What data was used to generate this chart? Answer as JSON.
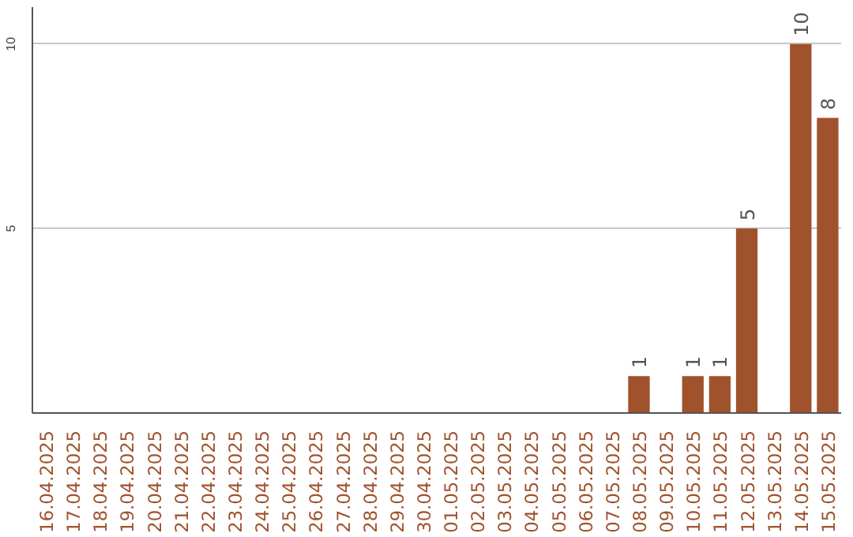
{
  "chart_data": {
    "type": "bar",
    "categories": [
      "16.04.2025",
      "17.04.2025",
      "18.04.2025",
      "19.04.2025",
      "20.04.2025",
      "21.04.2025",
      "22.04.2025",
      "23.04.2025",
      "24.04.2025",
      "25.04.2025",
      "26.04.2025",
      "27.04.2025",
      "28.04.2025",
      "29.04.2025",
      "30.04.2025",
      "01.05.2025",
      "02.05.2025",
      "03.05.2025",
      "04.05.2025",
      "05.05.2025",
      "06.05.2025",
      "07.05.2025",
      "08.05.2025",
      "09.05.2025",
      "10.05.2025",
      "11.05.2025",
      "12.05.2025",
      "13.05.2025",
      "14.05.2025",
      "15.05.2025"
    ],
    "values": [
      0,
      0,
      0,
      0,
      0,
      0,
      0,
      0,
      0,
      0,
      0,
      0,
      0,
      0,
      0,
      0,
      0,
      0,
      0,
      0,
      0,
      0,
      1,
      0,
      1,
      1,
      5,
      0,
      10,
      8
    ],
    "value_labels": [
      null,
      null,
      null,
      null,
      null,
      null,
      null,
      null,
      null,
      null,
      null,
      null,
      null,
      null,
      null,
      null,
      null,
      null,
      null,
      null,
      null,
      null,
      "1",
      null,
      "1",
      "1",
      "5",
      null,
      "10",
      "8"
    ],
    "color": "#a0522d",
    "ylim": [
      0,
      11
    ],
    "yticks": [
      5,
      10
    ],
    "grid": "y"
  }
}
